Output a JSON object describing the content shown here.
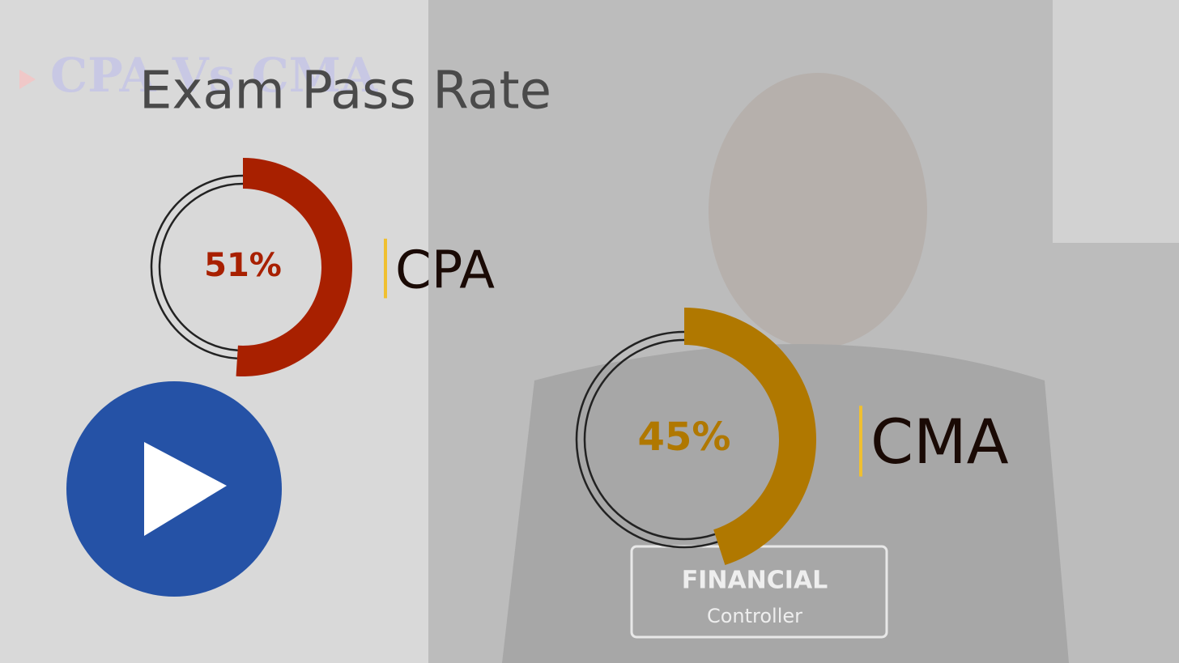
{
  "chart_data": {
    "type": "gauge",
    "title": "Exam Pass Rate",
    "categories": [
      "CPA",
      "CMA"
    ],
    "values": [
      51,
      45
    ],
    "value_labels": [
      "51%",
      "45%"
    ],
    "colors": [
      "#a82000",
      "#b07800"
    ]
  },
  "background": {
    "heading": "CPA Vs CMA",
    "shirt": [
      "FINANCIAL",
      "Controller"
    ]
  }
}
